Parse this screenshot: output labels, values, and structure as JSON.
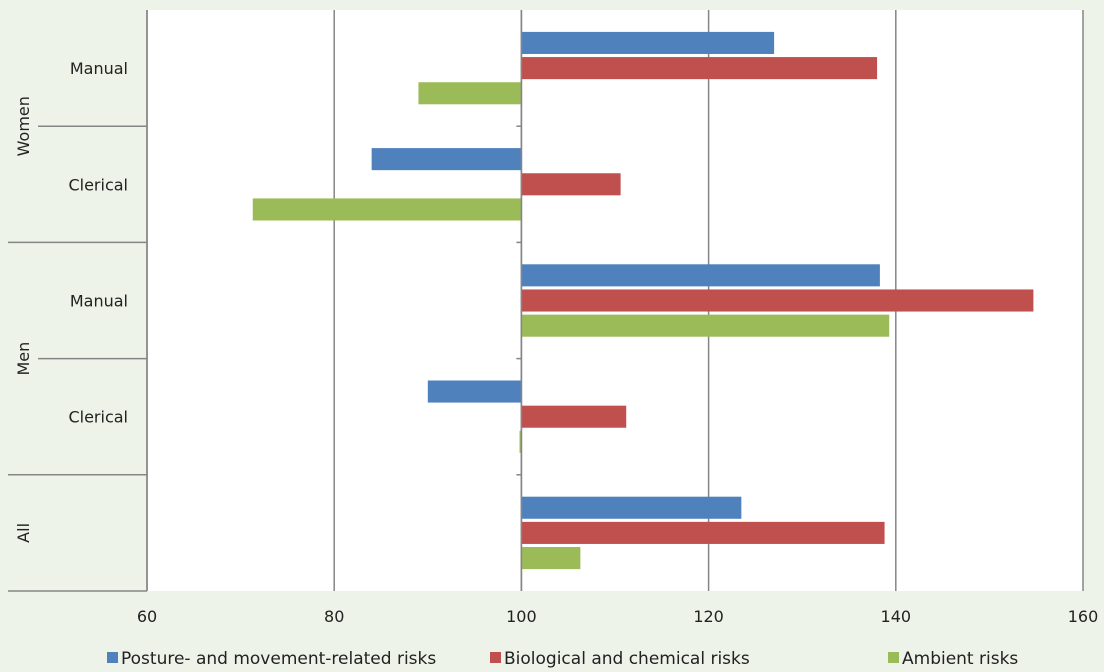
{
  "chart_data": {
    "type": "bar",
    "orientation": "horizontal",
    "baseline": 100,
    "xlim": [
      60,
      160
    ],
    "x_ticks": [
      "60",
      "80",
      "100",
      "120",
      "140",
      "160"
    ],
    "x_tick_values": [
      60,
      80,
      100,
      120,
      140,
      160
    ],
    "groups": [
      {
        "label": "Women",
        "categories": [
          "Manual",
          "Clerical"
        ]
      },
      {
        "label": "Men",
        "categories": [
          "Manual",
          "Clerical"
        ]
      },
      {
        "label": "All",
        "categories": [
          ""
        ]
      }
    ],
    "series": [
      {
        "name": "Posture- and movement-related risks",
        "color": "#4f81bd",
        "values": [
          127,
          84,
          138.3,
          90,
          123.5
        ]
      },
      {
        "name": "Biological and chemical risks",
        "color": "#c0504d",
        "values": [
          138,
          110.6,
          154.7,
          111.2,
          138.8
        ]
      },
      {
        "name": "Ambient risks",
        "color": "#9bbb59",
        "values": [
          89,
          71.3,
          139.3,
          99.8,
          106.3
        ]
      }
    ],
    "grid": {
      "vertical": true,
      "horizontal": false
    },
    "legend_position": "bottom",
    "plot_background": "#ffffff",
    "page_background": "#eef3e9"
  }
}
